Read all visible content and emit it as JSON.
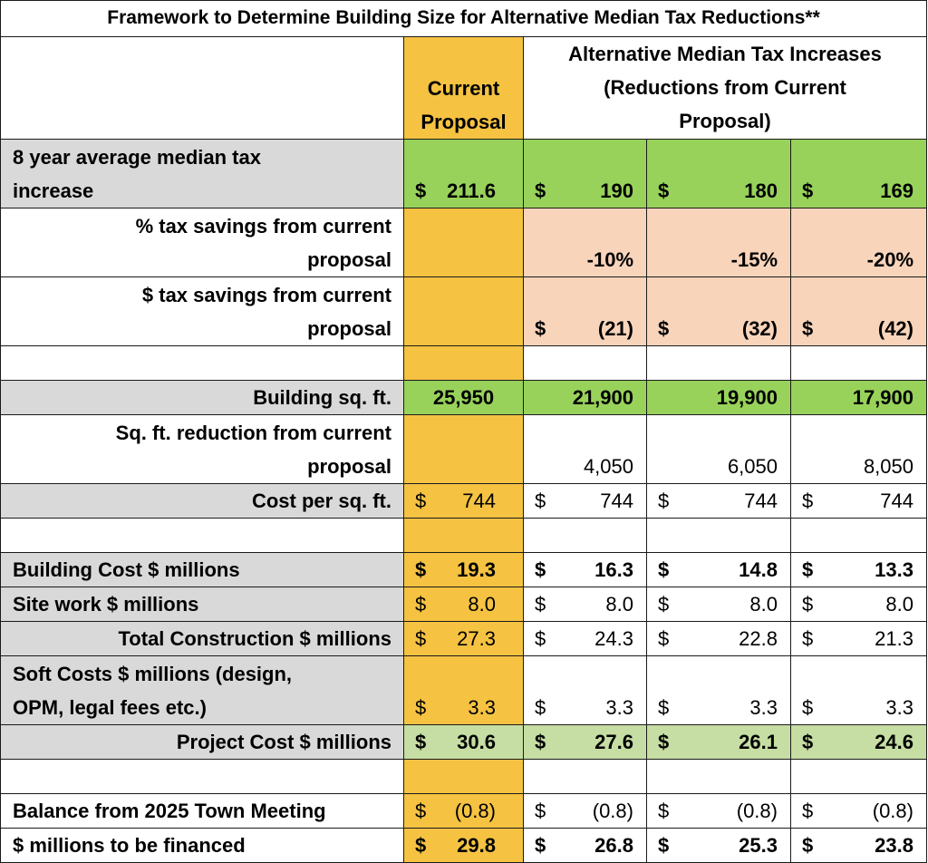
{
  "title": "Framework to Determine Building Size for Alternative Median Tax Reductions**",
  "header": {
    "current_line1": "Current",
    "current_line2": "Proposal",
    "alt_line1": "Alternative Median Tax Increases",
    "alt_line2": "(Reductions from Current",
    "alt_line3": "Proposal)"
  },
  "colors": {
    "gray": "#d9d9d9",
    "gold": "#f5c242",
    "green": "#98d25b",
    "peach": "#f8d4bb",
    "light_green": "#c6dea3"
  },
  "rows": [
    {
      "label": [
        "8 year average median tax",
        "increase"
      ],
      "align": "left",
      "bold": true,
      "label_bg": "gray",
      "current": {
        "sym": "$",
        "val": "211.6"
      },
      "alts": [
        {
          "sym": "$",
          "val": "190"
        },
        {
          "sym": "$",
          "val": "180"
        },
        {
          "sym": "$",
          "val": "169"
        }
      ],
      "alts_bg": "green",
      "current_bg": "green"
    },
    {
      "label": [
        "% tax savings from current",
        "proposal"
      ],
      "align": "right",
      "bold": true,
      "label_bg": "",
      "current": null,
      "alts": [
        {
          "sym": "",
          "val": "-10%"
        },
        {
          "sym": "",
          "val": "-15%"
        },
        {
          "sym": "",
          "val": "-20%"
        }
      ],
      "alts_bg": "peach",
      "current_bg": "gold"
    },
    {
      "label": [
        "$ tax savings from current",
        "proposal"
      ],
      "align": "right",
      "bold": true,
      "label_bg": "",
      "current": null,
      "alts": [
        {
          "sym": "$",
          "val": "(21)"
        },
        {
          "sym": "$",
          "val": "(32)"
        },
        {
          "sym": "$",
          "val": "(42)"
        }
      ],
      "alts_bg": "peach",
      "current_bg": "gold"
    },
    {
      "blank": true
    },
    {
      "label": [
        "Building sq. ft."
      ],
      "align": "right",
      "bold": true,
      "label_bg": "gray",
      "current": {
        "sym": "",
        "val": "25,950"
      },
      "alts": [
        {
          "sym": "",
          "val": "21,900"
        },
        {
          "sym": "",
          "val": "19,900"
        },
        {
          "sym": "",
          "val": "17,900"
        }
      ],
      "alts_bg": "green",
      "current_bg": "green"
    },
    {
      "label": [
        "Sq. ft. reduction from current",
        "proposal"
      ],
      "align": "right",
      "bold": true,
      "label_bg": "",
      "current": null,
      "alts": [
        {
          "sym": "",
          "val": "4,050"
        },
        {
          "sym": "",
          "val": "6,050"
        },
        {
          "sym": "",
          "val": "8,050"
        }
      ],
      "alts_bold": false,
      "alts_bg": "",
      "current_bg": "gold"
    },
    {
      "label": [
        "Cost per sq. ft."
      ],
      "align": "right",
      "bold": true,
      "label_bg": "gray",
      "current": {
        "sym": "$",
        "val": "744"
      },
      "alts": [
        {
          "sym": "$",
          "val": "744"
        },
        {
          "sym": "$",
          "val": "744"
        },
        {
          "sym": "$",
          "val": "744"
        }
      ],
      "alts_bold": false,
      "current_bold": false,
      "alts_bg": "",
      "current_bg": "gold"
    },
    {
      "blank": true
    },
    {
      "label": [
        "Building Cost $ millions"
      ],
      "align": "left",
      "bold": true,
      "label_bg": "gray",
      "current": {
        "sym": "$",
        "val": "19.3"
      },
      "alts": [
        {
          "sym": "$",
          "val": "16.3"
        },
        {
          "sym": "$",
          "val": "14.8"
        },
        {
          "sym": "$",
          "val": "13.3"
        }
      ],
      "alts_bg": "",
      "current_bg": "gold"
    },
    {
      "label": [
        "Site work $ millions"
      ],
      "align": "left",
      "bold": true,
      "label_bg": "gray",
      "current": {
        "sym": "$",
        "val": "8.0"
      },
      "alts": [
        {
          "sym": "$",
          "val": "8.0"
        },
        {
          "sym": "$",
          "val": "8.0"
        },
        {
          "sym": "$",
          "val": "8.0"
        }
      ],
      "alts_bold": false,
      "current_bold": false,
      "alts_bg": "",
      "current_bg": "gold"
    },
    {
      "label": [
        "Total Construction $ millions"
      ],
      "align": "right",
      "bold": true,
      "label_bg": "gray",
      "current": {
        "sym": "$",
        "val": "27.3"
      },
      "alts": [
        {
          "sym": "$",
          "val": "24.3"
        },
        {
          "sym": "$",
          "val": "22.8"
        },
        {
          "sym": "$",
          "val": "21.3"
        }
      ],
      "alts_bold": false,
      "current_bold": false,
      "alts_bg": "",
      "current_bg": "gold"
    },
    {
      "label": [
        "Soft Costs $ millions (design,",
        "OPM, legal fees etc.)"
      ],
      "align": "left",
      "bold": true,
      "label_bg": "gray",
      "current": {
        "sym": "$",
        "val": "3.3"
      },
      "alts": [
        {
          "sym": "$",
          "val": "3.3"
        },
        {
          "sym": "$",
          "val": "3.3"
        },
        {
          "sym": "$",
          "val": "3.3"
        }
      ],
      "alts_bold": false,
      "current_bold": false,
      "alts_bg": "",
      "current_bg": "gold"
    },
    {
      "label": [
        "Project Cost $ millions"
      ],
      "align": "right",
      "bold": true,
      "label_bg": "gray",
      "current": {
        "sym": "$",
        "val": "30.6"
      },
      "alts": [
        {
          "sym": "$",
          "val": "27.6"
        },
        {
          "sym": "$",
          "val": "26.1"
        },
        {
          "sym": "$",
          "val": "24.6"
        }
      ],
      "alts_bg": "light_green",
      "current_bg": "light_green"
    },
    {
      "blank": true
    },
    {
      "label": [
        "Balance from 2025 Town Meeting"
      ],
      "align": "left",
      "bold": true,
      "label_bg": "",
      "current": {
        "sym": "$",
        "val": "(0.8)"
      },
      "alts": [
        {
          "sym": "$",
          "val": "(0.8)"
        },
        {
          "sym": "$",
          "val": "(0.8)"
        },
        {
          "sym": "$",
          "val": "(0.8)"
        }
      ],
      "alts_bold": false,
      "current_bold": false,
      "alts_bg": "",
      "current_bg": "gold"
    },
    {
      "label": [
        "$ millions to be financed"
      ],
      "align": "left",
      "bold": true,
      "label_bg": "",
      "current": {
        "sym": "$",
        "val": "29.8"
      },
      "alts": [
        {
          "sym": "$",
          "val": "26.8"
        },
        {
          "sym": "$",
          "val": "25.3"
        },
        {
          "sym": "$",
          "val": "23.8"
        }
      ],
      "alts_bg": "",
      "current_bg": "gold"
    }
  ]
}
